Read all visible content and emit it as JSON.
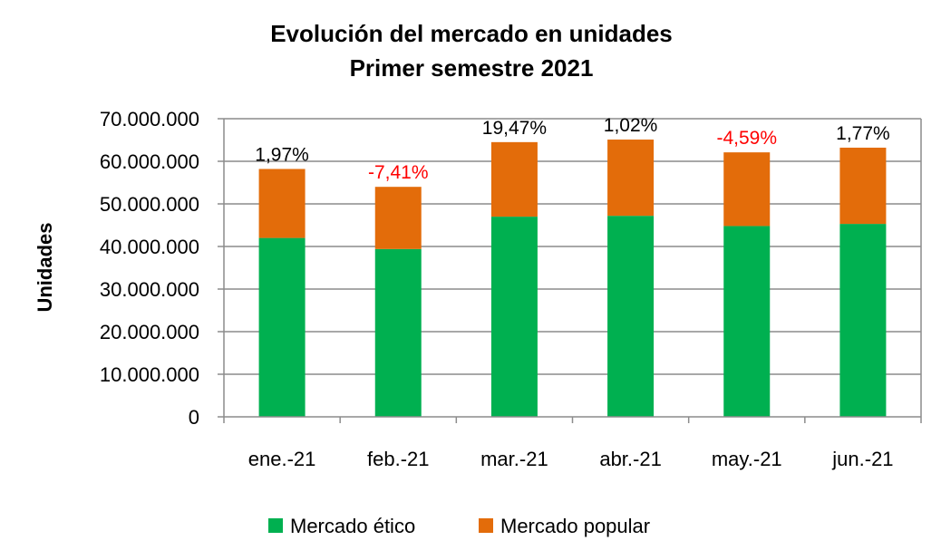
{
  "chart_data": {
    "type": "bar",
    "stacked": true,
    "title": "Evolución del mercado en unidades",
    "subtitle": "Primer semestre 2021",
    "xlabel": "",
    "ylabel": "Unidades",
    "ylim": [
      0,
      70000000
    ],
    "yticks": [
      "0",
      "10.000.000",
      "20.000.000",
      "30.000.000",
      "40.000.000",
      "50.000.000",
      "60.000.000",
      "70.000.000"
    ],
    "categories": [
      "ene.-21",
      "feb.-21",
      "mar.-21",
      "abr.-21",
      "may.-21",
      "jun.-21"
    ],
    "series": [
      {
        "name": "Mercado ético",
        "color": "#00b050",
        "values": [
          42000000,
          39400000,
          47000000,
          47200000,
          44800000,
          45300000
        ]
      },
      {
        "name": "Mercado popular",
        "color": "#e36c0a",
        "values": [
          16200000,
          14600000,
          17500000,
          17900000,
          17300000,
          17900000
        ]
      }
    ],
    "annotations": [
      {
        "text": "1,97%",
        "color": "#000000"
      },
      {
        "text": "-7,41%",
        "color": "#ff0000"
      },
      {
        "text": "19,47%",
        "color": "#000000"
      },
      {
        "text": "1,02%",
        "color": "#000000"
      },
      {
        "text": "-4,59%",
        "color": "#ff0000"
      },
      {
        "text": "1,77%",
        "color": "#000000"
      }
    ],
    "grid": true,
    "legend": "bottom"
  }
}
